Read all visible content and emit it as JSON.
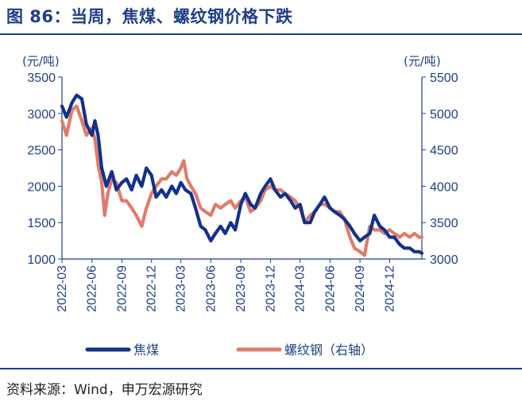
{
  "title": "图 86：当周，焦煤、螺纹钢价格下跌",
  "source": "资料来源：Wind，申万宏源研究",
  "chart_data": {
    "type": "line",
    "y_left": {
      "unit": "(元/吨)",
      "min": 1000,
      "max": 3500,
      "ticks": [
        1000,
        1500,
        2000,
        2500,
        3000,
        3500
      ]
    },
    "y_right": {
      "unit": "(元/吨)",
      "min": 3000,
      "max": 5500,
      "ticks": [
        3000,
        3500,
        4000,
        4500,
        5000,
        5500
      ]
    },
    "x_ticks": [
      "2022-03",
      "2022-06",
      "2022-09",
      "2022-12",
      "2023-03",
      "2023-06",
      "2023-09",
      "2023-12",
      "2024-03",
      "2024-06",
      "2024-09",
      "2024-12"
    ],
    "x_range": [
      "2022-03-01",
      "2025-03-10"
    ],
    "series": [
      {
        "name": "焦煤",
        "axis": "left",
        "color": "#12318a",
        "points": [
          [
            "2022-03-01",
            3100
          ],
          [
            "2022-03-15",
            2950
          ],
          [
            "2022-04-01",
            3150
          ],
          [
            "2022-04-15",
            3250
          ],
          [
            "2022-05-01",
            3200
          ],
          [
            "2022-05-15",
            2850
          ],
          [
            "2022-06-01",
            2700
          ],
          [
            "2022-06-10",
            2900
          ],
          [
            "2022-06-20",
            2700
          ],
          [
            "2022-07-01",
            2250
          ],
          [
            "2022-07-15",
            2000
          ],
          [
            "2022-08-01",
            2200
          ],
          [
            "2022-08-15",
            1950
          ],
          [
            "2022-09-01",
            2050
          ],
          [
            "2022-09-15",
            2100
          ],
          [
            "2022-10-01",
            1950
          ],
          [
            "2022-10-15",
            2150
          ],
          [
            "2022-11-01",
            2000
          ],
          [
            "2022-11-15",
            2250
          ],
          [
            "2022-12-01",
            2150
          ],
          [
            "2022-12-15",
            1850
          ],
          [
            "2023-01-01",
            1950
          ],
          [
            "2023-01-15",
            1850
          ],
          [
            "2023-02-01",
            2000
          ],
          [
            "2023-02-15",
            1900
          ],
          [
            "2023-03-01",
            2050
          ],
          [
            "2023-03-15",
            1950
          ],
          [
            "2023-04-01",
            1900
          ],
          [
            "2023-04-15",
            1700
          ],
          [
            "2023-05-01",
            1450
          ],
          [
            "2023-05-15",
            1400
          ],
          [
            "2023-06-01",
            1250
          ],
          [
            "2023-06-15",
            1350
          ],
          [
            "2023-07-01",
            1450
          ],
          [
            "2023-07-15",
            1350
          ],
          [
            "2023-08-01",
            1500
          ],
          [
            "2023-08-15",
            1400
          ],
          [
            "2023-09-01",
            1750
          ],
          [
            "2023-09-15",
            1900
          ],
          [
            "2023-10-01",
            1750
          ],
          [
            "2023-10-15",
            1700
          ],
          [
            "2023-11-01",
            1900
          ],
          [
            "2023-11-15",
            2000
          ],
          [
            "2023-12-01",
            2100
          ],
          [
            "2023-12-15",
            1950
          ],
          [
            "2024-01-01",
            1850
          ],
          [
            "2024-01-15",
            1900
          ],
          [
            "2024-02-01",
            1800
          ],
          [
            "2024-02-15",
            1700
          ],
          [
            "2024-03-01",
            1750
          ],
          [
            "2024-03-15",
            1500
          ],
          [
            "2024-04-01",
            1500
          ],
          [
            "2024-04-15",
            1650
          ],
          [
            "2024-05-01",
            1750
          ],
          [
            "2024-05-15",
            1850
          ],
          [
            "2024-06-01",
            1700
          ],
          [
            "2024-06-15",
            1650
          ],
          [
            "2024-07-01",
            1600
          ],
          [
            "2024-07-15",
            1550
          ],
          [
            "2024-08-01",
            1450
          ],
          [
            "2024-08-15",
            1350
          ],
          [
            "2024-09-01",
            1250
          ],
          [
            "2024-09-15",
            1300
          ],
          [
            "2024-10-01",
            1350
          ],
          [
            "2024-10-15",
            1600
          ],
          [
            "2024-11-01",
            1450
          ],
          [
            "2024-11-15",
            1400
          ],
          [
            "2024-12-01",
            1300
          ],
          [
            "2024-12-15",
            1300
          ],
          [
            "2025-01-01",
            1200
          ],
          [
            "2025-01-15",
            1150
          ],
          [
            "2025-02-01",
            1150
          ],
          [
            "2025-02-15",
            1100
          ],
          [
            "2025-03-01",
            1100
          ],
          [
            "2025-03-10",
            1080
          ]
        ]
      },
      {
        "name": "螺纹钢（右轴）",
        "axis": "right",
        "color": "#e07b6b",
        "points": [
          [
            "2022-03-01",
            4900
          ],
          [
            "2022-03-15",
            4700
          ],
          [
            "2022-04-01",
            5050
          ],
          [
            "2022-04-15",
            5100
          ],
          [
            "2022-05-01",
            4900
          ],
          [
            "2022-05-15",
            4700
          ],
          [
            "2022-06-01",
            4800
          ],
          [
            "2022-06-10",
            4650
          ],
          [
            "2022-06-20",
            4300
          ],
          [
            "2022-07-01",
            4050
          ],
          [
            "2022-07-10",
            3600
          ],
          [
            "2022-07-20",
            3900
          ],
          [
            "2022-08-01",
            4100
          ],
          [
            "2022-08-15",
            4050
          ],
          [
            "2022-09-01",
            3800
          ],
          [
            "2022-09-15",
            3800
          ],
          [
            "2022-10-01",
            3700
          ],
          [
            "2022-10-15",
            3600
          ],
          [
            "2022-11-01",
            3450
          ],
          [
            "2022-11-15",
            3700
          ],
          [
            "2022-12-01",
            3900
          ],
          [
            "2022-12-15",
            4000
          ],
          [
            "2023-01-01",
            4100
          ],
          [
            "2023-01-15",
            4100
          ],
          [
            "2023-02-01",
            4200
          ],
          [
            "2023-02-15",
            4150
          ],
          [
            "2023-03-01",
            4250
          ],
          [
            "2023-03-10",
            4350
          ],
          [
            "2023-03-20",
            4100
          ],
          [
            "2023-04-01",
            4000
          ],
          [
            "2023-04-15",
            3900
          ],
          [
            "2023-05-01",
            3700
          ],
          [
            "2023-05-15",
            3650
          ],
          [
            "2023-06-01",
            3600
          ],
          [
            "2023-06-15",
            3750
          ],
          [
            "2023-07-01",
            3700
          ],
          [
            "2023-07-15",
            3750
          ],
          [
            "2023-08-01",
            3800
          ],
          [
            "2023-08-15",
            3700
          ],
          [
            "2023-09-01",
            3800
          ],
          [
            "2023-09-15",
            3850
          ],
          [
            "2023-10-01",
            3650
          ],
          [
            "2023-10-15",
            3700
          ],
          [
            "2023-11-01",
            3800
          ],
          [
            "2023-11-15",
            3950
          ],
          [
            "2023-12-01",
            4000
          ],
          [
            "2023-12-15",
            3950
          ],
          [
            "2024-01-01",
            3950
          ],
          [
            "2024-01-15",
            3900
          ],
          [
            "2024-02-01",
            3850
          ],
          [
            "2024-02-15",
            3800
          ],
          [
            "2024-03-01",
            3700
          ],
          [
            "2024-03-15",
            3500
          ],
          [
            "2024-04-01",
            3600
          ],
          [
            "2024-04-15",
            3650
          ],
          [
            "2024-05-01",
            3750
          ],
          [
            "2024-05-15",
            3750
          ],
          [
            "2024-06-01",
            3700
          ],
          [
            "2024-06-15",
            3650
          ],
          [
            "2024-07-01",
            3650
          ],
          [
            "2024-07-15",
            3550
          ],
          [
            "2024-08-01",
            3300
          ],
          [
            "2024-08-15",
            3150
          ],
          [
            "2024-09-01",
            3100
          ],
          [
            "2024-09-15",
            3050
          ],
          [
            "2024-10-01",
            3450
          ],
          [
            "2024-10-15",
            3400
          ],
          [
            "2024-11-01",
            3400
          ],
          [
            "2024-11-15",
            3350
          ],
          [
            "2024-12-01",
            3400
          ],
          [
            "2024-12-15",
            3350
          ],
          [
            "2025-01-01",
            3300
          ],
          [
            "2025-01-15",
            3350
          ],
          [
            "2025-02-01",
            3300
          ],
          [
            "2025-02-15",
            3350
          ],
          [
            "2025-03-01",
            3300
          ],
          [
            "2025-03-10",
            3300
          ]
        ]
      }
    ],
    "legend": {
      "placement": "bottom"
    },
    "grid": false
  }
}
